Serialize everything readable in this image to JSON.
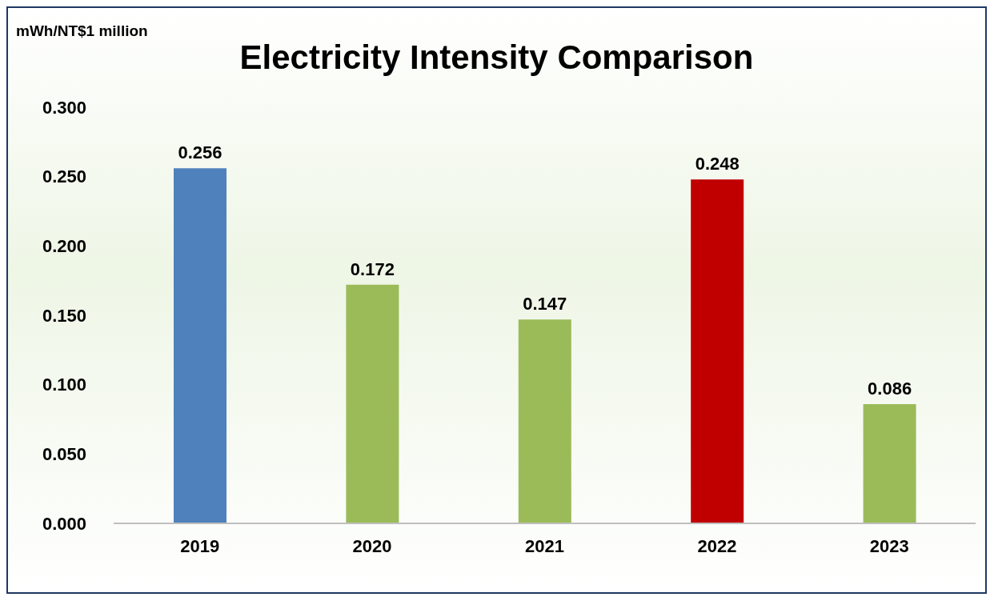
{
  "chart_data": {
    "type": "bar",
    "title": "Electricity Intensity Comparison",
    "ylabel": "mWh/NT$1 million",
    "categories": [
      "2019",
      "2020",
      "2021",
      "2022",
      "2023"
    ],
    "values": [
      0.256,
      0.172,
      0.147,
      0.248,
      0.086
    ],
    "colors": [
      "#4f81bd",
      "#9bbb59",
      "#9bbb59",
      "#c00000",
      "#9bbb59"
    ],
    "ylim": [
      0,
      0.3
    ],
    "yticks": [
      {
        "value": 0,
        "label": "0.000"
      },
      {
        "value": 0.05,
        "label": "0.050"
      },
      {
        "value": 0.1,
        "label": "0.100"
      },
      {
        "value": 0.15,
        "label": "0.150"
      },
      {
        "value": 0.2,
        "label": "0.200"
      },
      {
        "value": 0.25,
        "label": "0.250"
      },
      {
        "value": 0.3,
        "label": "0.300"
      }
    ],
    "data_labels": true
  }
}
